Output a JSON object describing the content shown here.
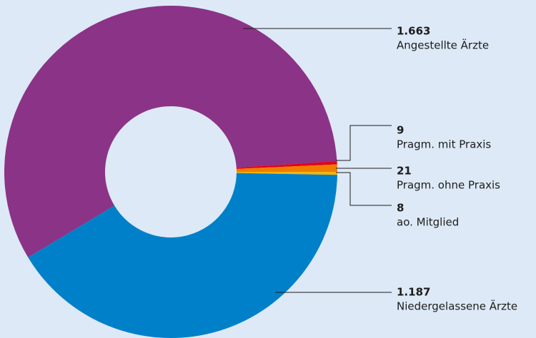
{
  "chart_data": {
    "type": "donut",
    "categories": [
      "Angestellte Ärzte",
      "Pragm. mit Praxis",
      "Pragm. ohne Praxis",
      "ao. Mitglied",
      "Niedergelassene Ärzte"
    ],
    "values": [
      1663,
      9,
      21,
      8,
      1187
    ],
    "value_labels": [
      "1.663",
      "9",
      "21",
      "8",
      "1.187"
    ],
    "colors": [
      "#8b3387",
      "#e2001a",
      "#f07d00",
      "#f9b200",
      "#0080c9"
    ]
  }
}
